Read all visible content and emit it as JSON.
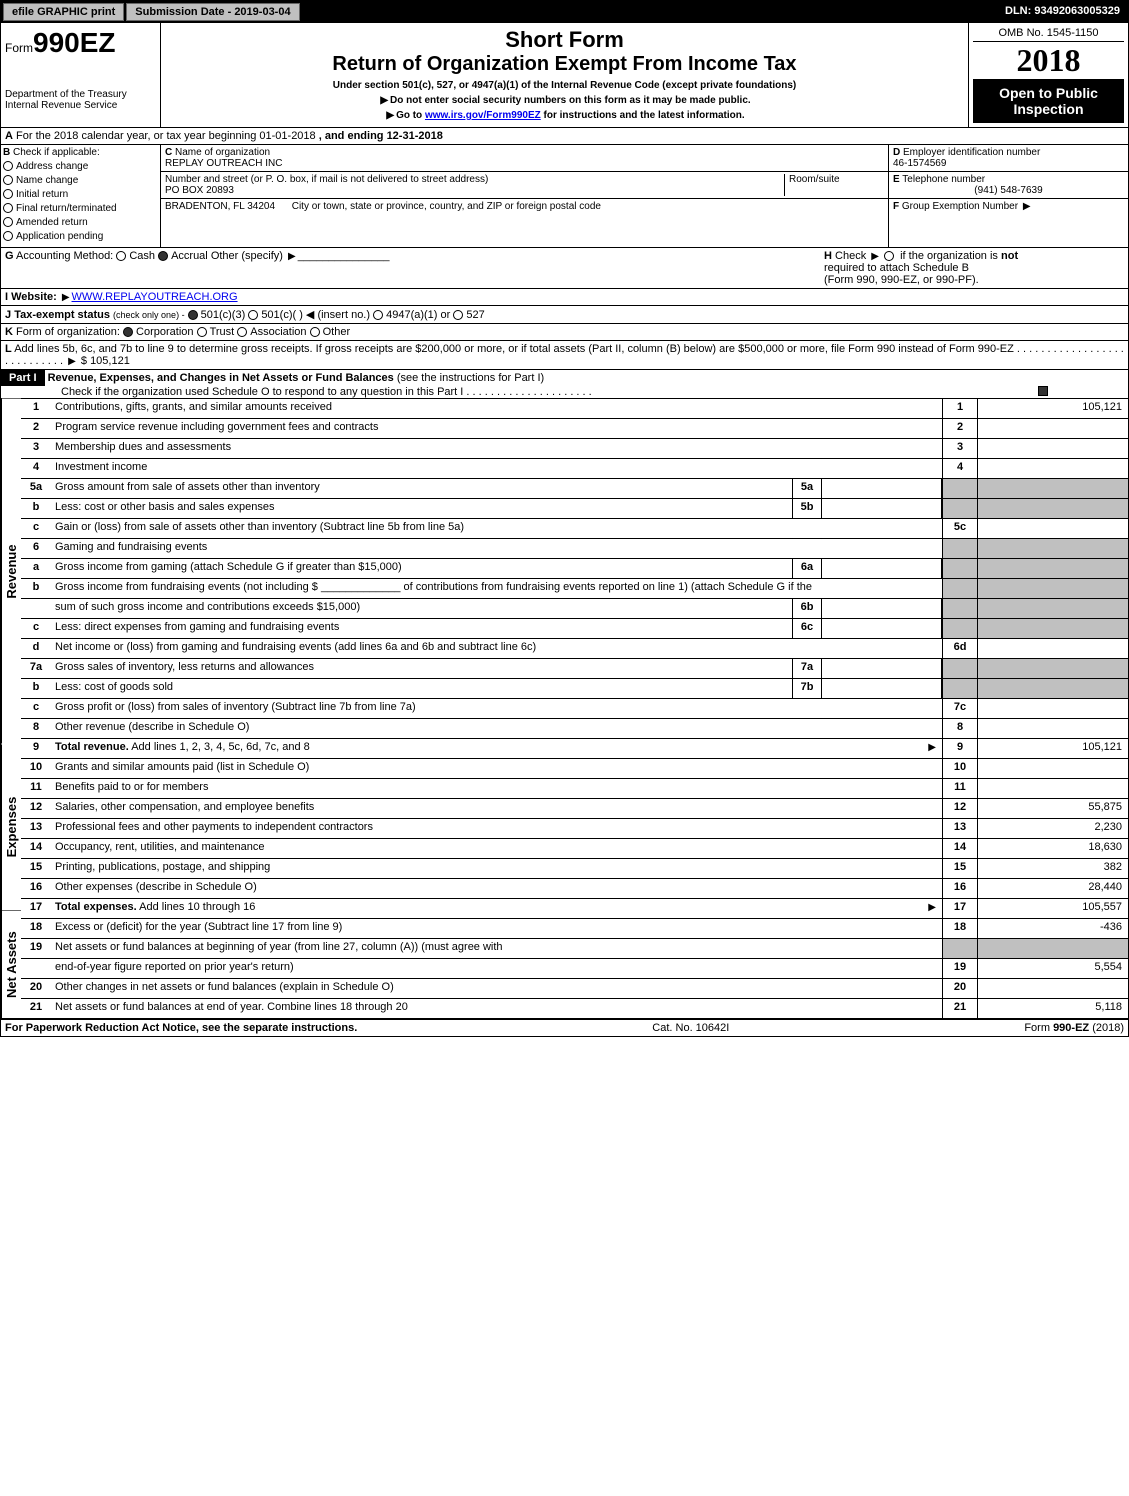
{
  "top": {
    "efile": "efile GRAPHIC print",
    "submission": "Submission Date - 2019-03-04",
    "dln": "DLN: 93492063005329"
  },
  "header": {
    "form_prefix": "Form",
    "form_number": "990EZ",
    "short_form": "Short Form",
    "title": "Return of Organization Exempt From Income Tax",
    "subtitle": "Under section 501(c), 527, or 4947(a)(1) of the Internal Revenue Code (except private foundations)",
    "warning": "Do not enter social security numbers on this form as it may be made public.",
    "goto": "Go to",
    "goto_link": "www.irs.gov/Form990EZ",
    "goto_suffix": "for instructions and the latest information.",
    "dept1": "Department of the Treasury",
    "dept2": "Internal Revenue Service",
    "omb": "OMB No. 1545-1150",
    "year": "2018",
    "open": "Open to Public",
    "inspection": "Inspection"
  },
  "section_a": {
    "label": "A",
    "text": "For the 2018 calendar year, or tax year beginning 01-01-2018",
    "ending": ", and ending 12-31-2018"
  },
  "section_b": {
    "label": "B",
    "check_if": "Check if applicable:",
    "items": [
      "Address change",
      "Name change",
      "Initial return",
      "Final return/terminated",
      "Amended return",
      "Application pending"
    ]
  },
  "section_c": {
    "label": "C",
    "name_label": "Name of organization",
    "name": "REPLAY OUTREACH INC",
    "street_label": "Number and street (or P. O. box, if mail is not delivered to street address)",
    "street": "PO BOX 20893",
    "room_label": "Room/suite",
    "city": "BRADENTON, FL  34204",
    "city_label": "City or town, state or province, country, and ZIP or foreign postal code"
  },
  "section_d": {
    "label": "D",
    "text": "Employer identification number",
    "value": "46-1574569"
  },
  "section_e": {
    "label": "E",
    "text": "Telephone number",
    "value": "(941) 548-7639"
  },
  "section_f": {
    "label": "F",
    "text": "Group Exemption Number"
  },
  "section_g": {
    "label": "G",
    "text": "Accounting Method:",
    "cash": "Cash",
    "accrual": "Accrual",
    "other": "Other (specify)"
  },
  "section_h": {
    "label": "H",
    "check": "Check",
    "text1": "if the organization is",
    "not": "not",
    "text2": "required to attach Schedule B",
    "text3": "(Form 990, 990-EZ, or 990-PF)."
  },
  "section_i": {
    "label": "I",
    "website_label": "Website:",
    "website": "WWW.REPLAYOUTREACH.ORG"
  },
  "section_j": {
    "label": "J",
    "text": "Tax-exempt status",
    "check_only": "(check only one) -",
    "opts": [
      "501(c)(3)",
      "501(c)(  )",
      "(insert no.)",
      "4947(a)(1) or",
      "527"
    ]
  },
  "section_k": {
    "label": "K",
    "text": "Form of organization:",
    "opts": [
      "Corporation",
      "Trust",
      "Association",
      "Other"
    ]
  },
  "section_l": {
    "label": "L",
    "text": "Add lines 5b, 6c, and 7b to line 9 to determine gross receipts. If gross receipts are $200,000 or more, or if total assets (Part II, column (B) below) are $500,000 or more, file Form 990 instead of Form 990-EZ",
    "value": "$ 105,121"
  },
  "part1": {
    "label": "Part I",
    "title": "Revenue, Expenses, and Changes in Net Assets or Fund Balances",
    "subtitle": "(see the instructions for Part I)",
    "check_text": "Check if the organization used Schedule O to respond to any question in this Part I"
  },
  "side_labels": {
    "revenue": "Revenue",
    "expenses": "Expenses",
    "net_assets": "Net Assets"
  },
  "lines": [
    {
      "no": "1",
      "desc": "Contributions, gifts, grants, and similar amounts received",
      "rno": "1",
      "rval": "105,121"
    },
    {
      "no": "2",
      "desc": "Program service revenue including government fees and contracts",
      "rno": "2",
      "rval": ""
    },
    {
      "no": "3",
      "desc": "Membership dues and assessments",
      "rno": "3",
      "rval": ""
    },
    {
      "no": "4",
      "desc": "Investment income",
      "rno": "4",
      "rval": ""
    },
    {
      "no": "5a",
      "desc": "Gross amount from sale of assets other than inventory",
      "mno": "5a",
      "mval": ""
    },
    {
      "no": "b",
      "desc": "Less: cost or other basis and sales expenses",
      "mno": "5b",
      "mval": ""
    },
    {
      "no": "c",
      "desc": "Gain or (loss) from sale of assets other than inventory (Subtract line 5b from line 5a)",
      "rno": "5c",
      "rval": ""
    },
    {
      "no": "6",
      "desc": "Gaming and fundraising events"
    },
    {
      "no": "a",
      "desc": "Gross income from gaming (attach Schedule G if greater than $15,000)",
      "mno": "6a",
      "mval": ""
    },
    {
      "no": "b",
      "desc": "Gross income from fundraising events (not including $ _____________ of contributions from fundraising events reported on line 1) (attach Schedule G if the"
    },
    {
      "no": "",
      "desc": "sum of such gross income and contributions exceeds $15,000)",
      "mno": "6b",
      "mval": ""
    },
    {
      "no": "c",
      "desc": "Less: direct expenses from gaming and fundraising events",
      "mno": "6c",
      "mval": ""
    },
    {
      "no": "d",
      "desc": "Net income or (loss) from gaming and fundraising events (add lines 6a and 6b and subtract line 6c)",
      "rno": "6d",
      "rval": ""
    },
    {
      "no": "7a",
      "desc": "Gross sales of inventory, less returns and allowances",
      "mno": "7a",
      "mval": ""
    },
    {
      "no": "b",
      "desc": "Less: cost of goods sold",
      "mno": "7b",
      "mval": ""
    },
    {
      "no": "c",
      "desc": "Gross profit or (loss) from sales of inventory (Subtract line 7b from line 7a)",
      "rno": "7c",
      "rval": ""
    },
    {
      "no": "8",
      "desc": "Other revenue (describe in Schedule O)",
      "rno": "8",
      "rval": ""
    },
    {
      "no": "9",
      "desc": "Total revenue. Add lines 1, 2, 3, 4, 5c, 6d, 7c, and 8",
      "rno": "9",
      "rval": "105,121",
      "bold": true,
      "arrow": true
    },
    {
      "no": "10",
      "desc": "Grants and similar amounts paid (list in Schedule O)",
      "rno": "10",
      "rval": ""
    },
    {
      "no": "11",
      "desc": "Benefits paid to or for members",
      "rno": "11",
      "rval": ""
    },
    {
      "no": "12",
      "desc": "Salaries, other compensation, and employee benefits",
      "rno": "12",
      "rval": "55,875"
    },
    {
      "no": "13",
      "desc": "Professional fees and other payments to independent contractors",
      "rno": "13",
      "rval": "2,230"
    },
    {
      "no": "14",
      "desc": "Occupancy, rent, utilities, and maintenance",
      "rno": "14",
      "rval": "18,630"
    },
    {
      "no": "15",
      "desc": "Printing, publications, postage, and shipping",
      "rno": "15",
      "rval": "382"
    },
    {
      "no": "16",
      "desc": "Other expenses (describe in Schedule O)",
      "rno": "16",
      "rval": "28,440"
    },
    {
      "no": "17",
      "desc": "Total expenses. Add lines 10 through 16",
      "rno": "17",
      "rval": "105,557",
      "bold": true,
      "arrow": true
    },
    {
      "no": "18",
      "desc": "Excess or (deficit) for the year (Subtract line 17 from line 9)",
      "rno": "18",
      "rval": "-436"
    },
    {
      "no": "19",
      "desc": "Net assets or fund balances at beginning of year (from line 27, column (A)) (must agree with"
    },
    {
      "no": "",
      "desc": "end-of-year figure reported on prior year's return)",
      "rno": "19",
      "rval": "5,554"
    },
    {
      "no": "20",
      "desc": "Other changes in net assets or fund balances (explain in Schedule O)",
      "rno": "20",
      "rval": ""
    },
    {
      "no": "21",
      "desc": "Net assets or fund balances at end of year. Combine lines 18 through 20",
      "rno": "21",
      "rval": "5,118"
    }
  ],
  "footer": {
    "left": "For Paperwork Reduction Act Notice, see the separate instructions.",
    "center": "Cat. No. 10642I",
    "right": "Form 990-EZ (2018)"
  }
}
